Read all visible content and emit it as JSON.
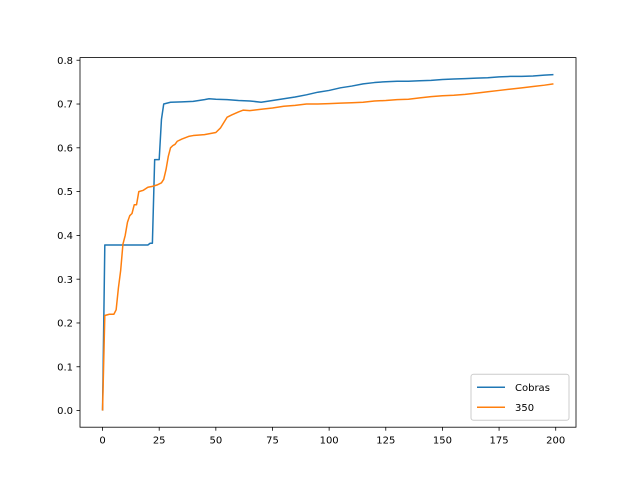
{
  "chart_data": {
    "type": "line",
    "x_ticks": [
      0,
      25,
      50,
      75,
      100,
      125,
      150,
      175,
      200
    ],
    "y_ticks": [
      0.0,
      0.1,
      0.2,
      0.3,
      0.4,
      0.5,
      0.6,
      0.7,
      0.8
    ],
    "y_tick_labels": [
      "0.0",
      "0.1",
      "0.2",
      "0.3",
      "0.4",
      "0.5",
      "0.6",
      "0.7",
      "0.8"
    ],
    "xlim": [
      -9.95,
      208.95
    ],
    "ylim": [
      -0.038,
      0.806
    ],
    "legend_position": "lower-right",
    "series": [
      {
        "name": "Cobras",
        "color": "#1f77b4",
        "x": [
          0,
          1,
          5,
          10,
          15,
          20,
          21,
          22,
          23,
          24,
          25,
          26,
          27,
          30,
          35,
          40,
          45,
          47,
          50,
          55,
          60,
          65,
          70,
          75,
          80,
          85,
          90,
          95,
          100,
          105,
          110,
          115,
          120,
          125,
          130,
          135,
          140,
          145,
          150,
          155,
          160,
          165,
          170,
          175,
          180,
          185,
          190,
          195,
          199
        ],
        "y": [
          0.0,
          0.378,
          0.378,
          0.378,
          0.378,
          0.378,
          0.382,
          0.382,
          0.573,
          0.573,
          0.573,
          0.665,
          0.7,
          0.704,
          0.705,
          0.706,
          0.71,
          0.712,
          0.711,
          0.71,
          0.708,
          0.707,
          0.704,
          0.708,
          0.712,
          0.716,
          0.721,
          0.727,
          0.731,
          0.737,
          0.741,
          0.746,
          0.749,
          0.751,
          0.752,
          0.752,
          0.753,
          0.754,
          0.756,
          0.757,
          0.758,
          0.759,
          0.76,
          0.762,
          0.763,
          0.763,
          0.764,
          0.766,
          0.767
        ]
      },
      {
        "name": "350",
        "color": "#ff7f0e",
        "x": [
          0,
          1,
          3,
          5,
          6,
          7,
          8,
          9,
          10,
          11,
          12,
          13,
          14,
          15,
          16,
          18,
          20,
          22,
          24,
          26,
          27,
          28,
          29,
          30,
          31,
          32,
          33,
          35,
          38,
          40,
          45,
          50,
          52,
          55,
          57,
          60,
          62,
          65,
          70,
          75,
          80,
          85,
          90,
          95,
          100,
          105,
          110,
          115,
          120,
          125,
          130,
          135,
          140,
          145,
          150,
          155,
          160,
          165,
          170,
          175,
          180,
          185,
          190,
          195,
          199
        ],
        "y": [
          0.0,
          0.217,
          0.22,
          0.22,
          0.23,
          0.28,
          0.32,
          0.38,
          0.4,
          0.43,
          0.445,
          0.45,
          0.47,
          0.47,
          0.5,
          0.503,
          0.51,
          0.512,
          0.515,
          0.52,
          0.528,
          0.55,
          0.58,
          0.6,
          0.605,
          0.608,
          0.615,
          0.62,
          0.626,
          0.628,
          0.63,
          0.635,
          0.645,
          0.67,
          0.675,
          0.682,
          0.686,
          0.685,
          0.688,
          0.691,
          0.695,
          0.697,
          0.7,
          0.7,
          0.701,
          0.702,
          0.703,
          0.704,
          0.707,
          0.708,
          0.71,
          0.711,
          0.714,
          0.717,
          0.719,
          0.72,
          0.722,
          0.725,
          0.728,
          0.731,
          0.734,
          0.737,
          0.74,
          0.743,
          0.746
        ]
      }
    ]
  }
}
